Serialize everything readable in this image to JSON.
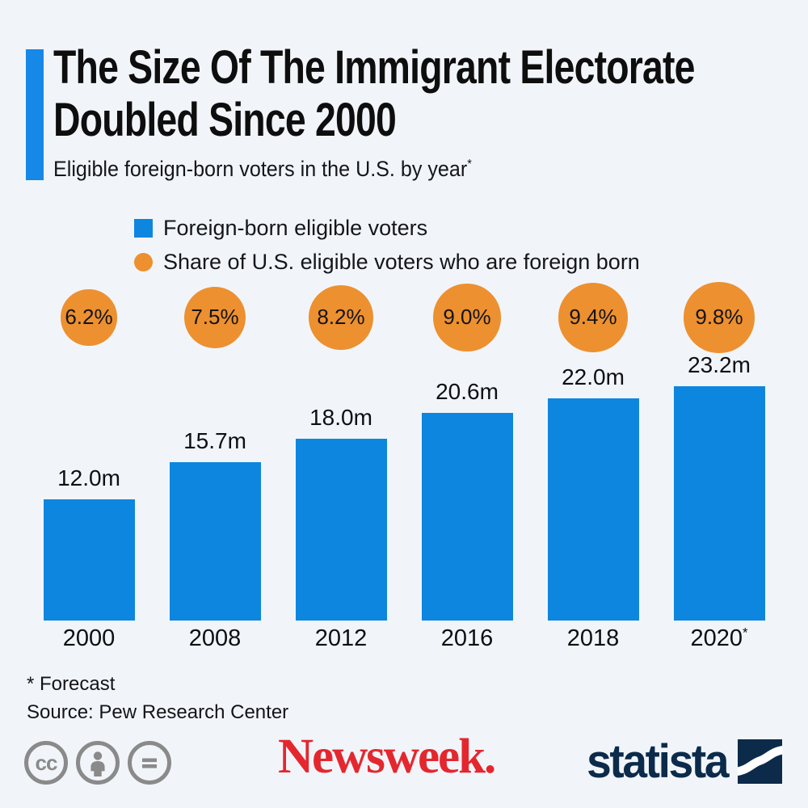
{
  "page": {
    "background": "#f1f5f9"
  },
  "header": {
    "accent_color": "#1588e8",
    "title_line1": "The Size Of The Immigrant Electorate",
    "title_line2": "Doubled Since 2000",
    "subtitle": "Eligible foreign-born voters in the U.S. by year",
    "footnote_marker": "*"
  },
  "legend": {
    "items": [
      {
        "label": "Foreign-born eligible voters",
        "marker": "square",
        "color": "#0d86e0"
      },
      {
        "label": "Share of U.S. eligible voters who are foreign born",
        "marker": "circle",
        "color": "#ed9030"
      }
    ]
  },
  "chart_data": {
    "type": "bar",
    "categories": [
      "2000",
      "2008",
      "2012",
      "2016",
      "2018",
      "2020"
    ],
    "forecast_category": "2020",
    "forecast_marker": "*",
    "series": [
      {
        "name": "Foreign-born eligible voters",
        "render": "bar",
        "unit": "million",
        "values": [
          12.0,
          15.7,
          18.0,
          20.6,
          22.0,
          23.2
        ],
        "labels": [
          "12.0m",
          "15.7m",
          "18.0m",
          "20.6m",
          "22.0m",
          "23.2m"
        ],
        "color": "#0d86e0"
      },
      {
        "name": "Share of U.S. eligible voters who are foreign born",
        "render": "sized-circle",
        "unit": "percent",
        "values": [
          6.2,
          7.5,
          8.2,
          9.0,
          9.4,
          9.8
        ],
        "labels": [
          "6.2%",
          "7.5%",
          "8.2%",
          "9.0%",
          "9.4%",
          "9.8%"
        ],
        "color": "#ed9030"
      }
    ],
    "ylim": [
      0,
      24
    ],
    "grid": false,
    "legend_position": "top"
  },
  "footnotes": {
    "forecast": "* Forecast",
    "source": "Source: Pew Research Center"
  },
  "branding": {
    "license_badge_text": "cc",
    "license_icons": [
      "cc-icon",
      "attribution-icon",
      "equals-icon"
    ],
    "publisher": "Newsweek.",
    "publisher_color": "#e4272e",
    "provider": "statista",
    "provider_color": "#0c2b4a"
  }
}
